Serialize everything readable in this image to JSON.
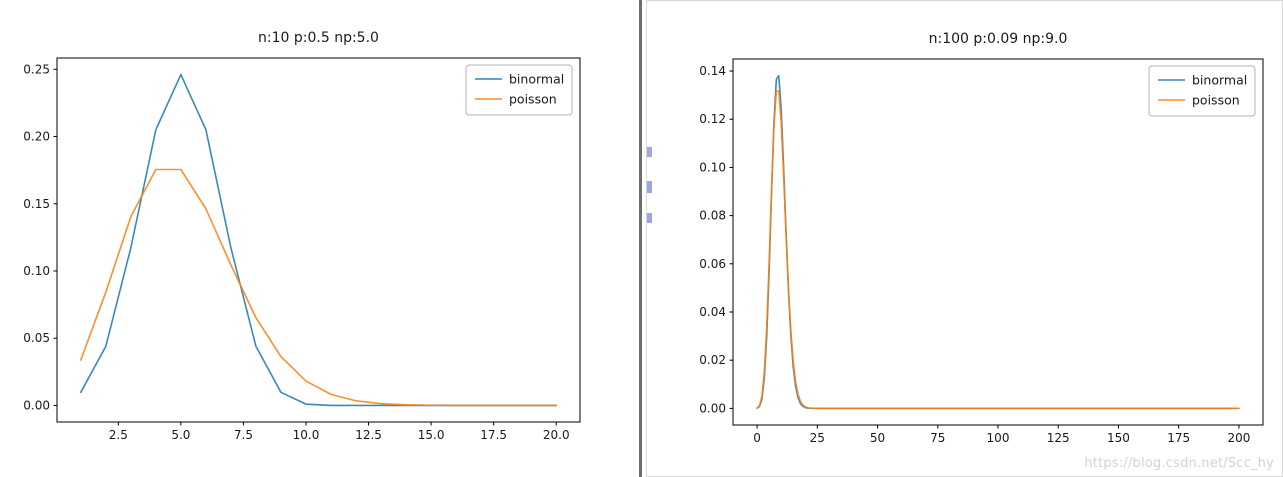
{
  "watermark": {
    "text": "https://blog.csdn.net/Scc_hy"
  },
  "colors": {
    "binormal": "#1f77b4",
    "poisson": "#ff7f0e",
    "divider": "#6e6e6e",
    "panel_border": "#d8d8d8"
  },
  "chart_data": [
    {
      "type": "line",
      "title": "n:10 p:0.5 np:5.0",
      "xlabel": "",
      "ylabel": "",
      "grid": false,
      "legend_position": "upper right",
      "xlim": [
        0.05,
        20.95
      ],
      "ylim": [
        -0.0123,
        0.2584
      ],
      "xticks": [
        2.5,
        5.0,
        7.5,
        10.0,
        12.5,
        15.0,
        17.5,
        20.0
      ],
      "xtick_labels": [
        "2.5",
        "5.0",
        "7.5",
        "10.0",
        "12.5",
        "15.0",
        "17.5",
        "20.0"
      ],
      "yticks": [
        0,
        0.05,
        0.1,
        0.15,
        0.2,
        0.25
      ],
      "ytick_labels": [
        "0.00",
        "0.05",
        "0.10",
        "0.15",
        "0.20",
        "0.25"
      ],
      "x": [
        1,
        2,
        3,
        4,
        5,
        6,
        7,
        8,
        9,
        10,
        11,
        12,
        13,
        14,
        15,
        16,
        17,
        18,
        19,
        20
      ],
      "series": [
        {
          "name": "binormal",
          "color": "#1f77b4",
          "values": [
            0.00977,
            0.04395,
            0.11719,
            0.20508,
            0.24609,
            0.20508,
            0.11719,
            0.04395,
            0.00977,
            0.00098,
            0,
            0,
            0,
            0,
            0,
            0,
            0,
            0,
            0,
            0
          ]
        },
        {
          "name": "poisson",
          "color": "#ff7f0e",
          "values": [
            0.03369,
            0.08422,
            0.14037,
            0.17547,
            0.17547,
            0.14622,
            0.10444,
            0.06528,
            0.03627,
            0.01813,
            0.00824,
            0.00343,
            0.00132,
            0.00047,
            0.00016,
            5e-05,
            1e-05,
            0,
            0,
            0
          ]
        }
      ]
    },
    {
      "type": "line",
      "title": "n:100 p:0.09 np:9.0",
      "xlabel": "",
      "ylabel": "",
      "grid": false,
      "legend_position": "upper right",
      "xlim": [
        -10,
        210
      ],
      "ylim": [
        -0.0069,
        0.145
      ],
      "xticks": [
        0,
        25,
        50,
        75,
        100,
        125,
        150,
        175,
        200
      ],
      "xtick_labels": [
        "0",
        "25",
        "50",
        "75",
        "100",
        "125",
        "150",
        "175",
        "200"
      ],
      "yticks": [
        0,
        0.02,
        0.04,
        0.06,
        0.08,
        0.1,
        0.12,
        0.14
      ],
      "ytick_labels": [
        "0.00",
        "0.02",
        "0.04",
        "0.06",
        "0.08",
        "0.10",
        "0.12",
        "0.14"
      ],
      "x": [
        0,
        1,
        2,
        3,
        4,
        5,
        6,
        7,
        8,
        9,
        10,
        11,
        12,
        13,
        14,
        15,
        16,
        17,
        18,
        19,
        20,
        21,
        22,
        23,
        24,
        25,
        26,
        27,
        28,
        29,
        30,
        40,
        60,
        80,
        100,
        120,
        140,
        160,
        180,
        200
      ],
      "series": [
        {
          "name": "binormal",
          "color": "#1f77b4",
          "values": [
            8e-05,
            0.00079,
            0.00388,
            0.01254,
            0.03008,
            0.05712,
            0.08944,
            0.11878,
            0.13657,
            0.13807,
            0.12426,
            0.10055,
            0.07376,
            0.04938,
            0.03035,
            0.01721,
            0.00904,
            0.00442,
            0.00202,
            0.00086,
            0.00034,
            0.00013,
            5e-05,
            2e-05,
            1e-05,
            0,
            0,
            0,
            0,
            0,
            0,
            0,
            0,
            0,
            0,
            0,
            0,
            0,
            0,
            0
          ]
        },
        {
          "name": "poisson",
          "color": "#ff7f0e",
          "values": [
            0.00012,
            0.00111,
            0.005,
            0.01499,
            0.03374,
            0.06073,
            0.09109,
            0.11712,
            0.13176,
            0.13176,
            0.11858,
            0.09702,
            0.07277,
            0.05038,
            0.03238,
            0.01943,
            0.01093,
            0.00579,
            0.00289,
            0.00137,
            0.00062,
            0.00026,
            0.00011,
            4e-05,
            2e-05,
            1e-05,
            0,
            0,
            0,
            0,
            0,
            0,
            0,
            0,
            0,
            0,
            0,
            0,
            0,
            0
          ]
        }
      ]
    }
  ]
}
